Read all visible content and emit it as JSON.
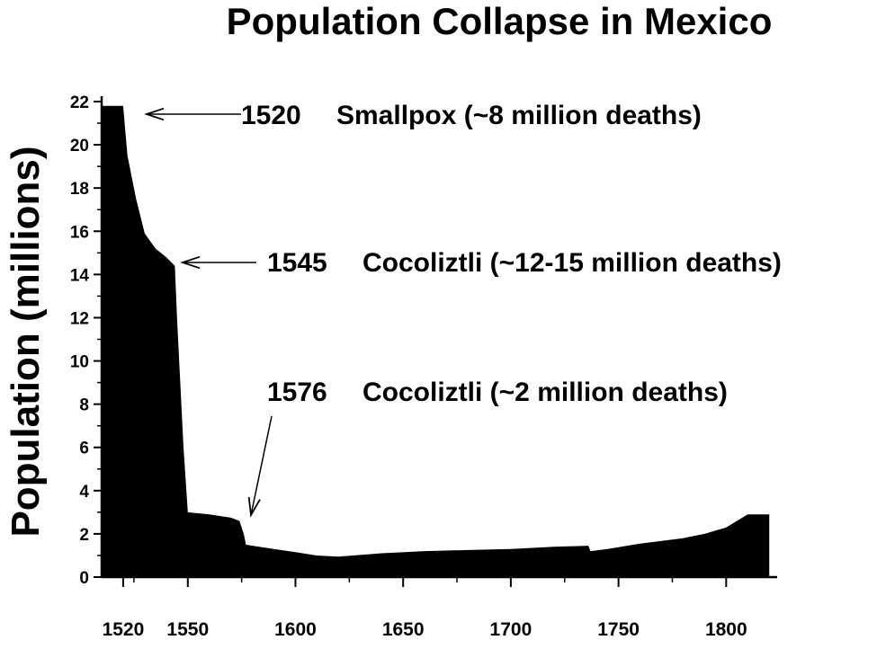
{
  "chart_data": {
    "type": "area",
    "title": "Population Collapse in Mexico",
    "xlabel": "",
    "ylabel": "Population (millions)",
    "xlim": [
      1510,
      1822
    ],
    "ylim": [
      0,
      22
    ],
    "grid": false,
    "legend": "none",
    "x_ticks": [
      1520,
      1550,
      1600,
      1650,
      1700,
      1750,
      1800
    ],
    "y_ticks": [
      0,
      2,
      4,
      6,
      8,
      10,
      12,
      14,
      16,
      18,
      20,
      22
    ],
    "fill_color": "#000000",
    "series": [
      {
        "x": [
          1510,
          1518,
          1520,
          1522,
          1526,
          1530,
          1535,
          1540,
          1542,
          1544,
          1545,
          1548,
          1550,
          1560,
          1570,
          1574,
          1576,
          1577,
          1580,
          1590,
          1600,
          1610,
          1620,
          1640,
          1660,
          1680,
          1700,
          1720,
          1736,
          1737,
          1745,
          1760,
          1780,
          1790,
          1800,
          1810,
          1820
        ],
        "y": [
          21.8,
          21.8,
          21.8,
          19.5,
          17.5,
          15.9,
          15.2,
          14.8,
          14.6,
          14.4,
          12.0,
          6.0,
          3.0,
          2.9,
          2.75,
          2.6,
          2.0,
          1.5,
          1.45,
          1.3,
          1.15,
          1.0,
          0.95,
          1.1,
          1.2,
          1.25,
          1.3,
          1.4,
          1.45,
          1.2,
          1.3,
          1.55,
          1.8,
          2.0,
          2.3,
          2.9,
          2.9
        ]
      }
    ],
    "annotations": [
      {
        "year": "1520",
        "text": "Smallpox (~8 million deaths)",
        "x": 1521,
        "y": 21.7
      },
      {
        "year": "1545",
        "text": "Cocoliztli (~12-15 million deaths)",
        "x": 1544,
        "y": 14.6
      },
      {
        "year": "1576",
        "text": "Cocoliztli (~2 million deaths)",
        "x": 1576,
        "y": 2.7
      }
    ]
  }
}
